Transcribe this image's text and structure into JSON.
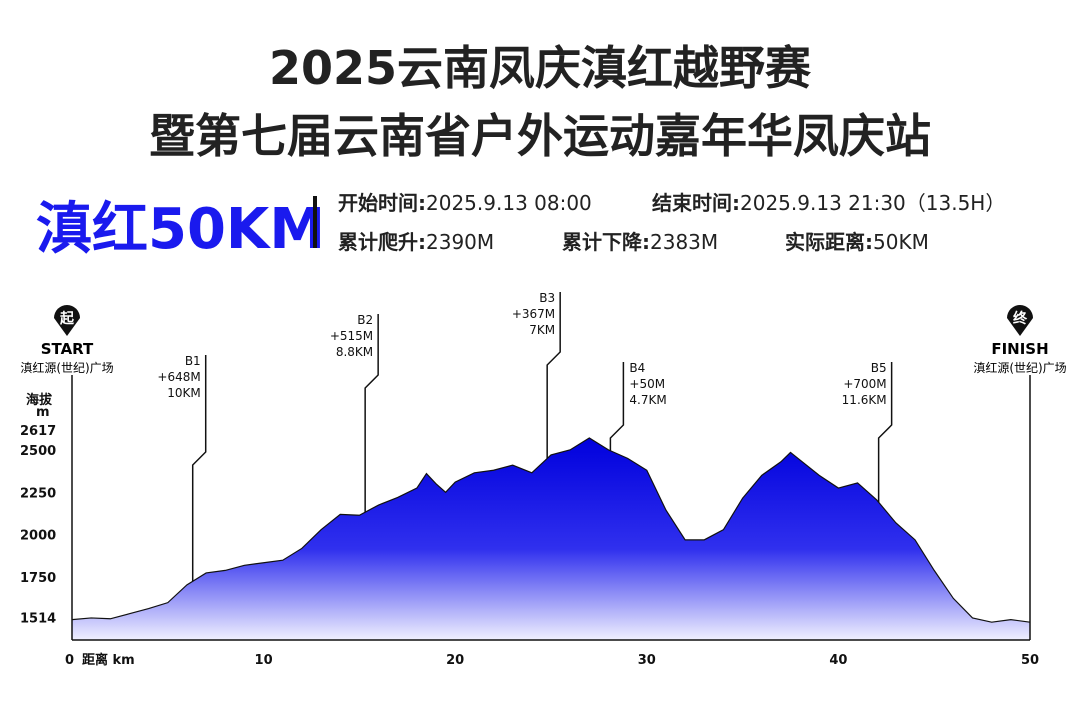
{
  "header": {
    "title_lines": [
      "2025云南凤庆滇红越野赛",
      "暨第七届云南省户外运动嘉年华凤庆站"
    ],
    "race": "滇红50KM",
    "info": [
      [
        {
          "label": "开始时间:",
          "value": "2025.9.13 08:00"
        },
        {
          "label": "结束时间:",
          "value": "2025.9.13  21:30（13.5H）"
        }
      ],
      [
        {
          "label": "累计爬升:",
          "value": "2390M"
        },
        {
          "label": "累计下降:",
          "value": "2383M"
        },
        {
          "label": "实际距离:",
          "value": "50KM"
        }
      ]
    ]
  },
  "chart_data": {
    "type": "area",
    "color": "#0000dd",
    "x": [
      0,
      1,
      2,
      3,
      4,
      5,
      6,
      7,
      8,
      9,
      10,
      11,
      12,
      13,
      14,
      15,
      16,
      17,
      18,
      18.5,
      19,
      19.5,
      20,
      21,
      22,
      23,
      24,
      25,
      26,
      27,
      28,
      29,
      30,
      31,
      32,
      33,
      34,
      35,
      36,
      37,
      37.5,
      38,
      39,
      40,
      41,
      42,
      43,
      44,
      45,
      46,
      47,
      48,
      49,
      50
    ],
    "values": [
      1500,
      1510,
      1505,
      1535,
      1565,
      1600,
      1705,
      1775,
      1790,
      1820,
      1835,
      1850,
      1920,
      2030,
      2120,
      2115,
      2175,
      2220,
      2275,
      2360,
      2300,
      2250,
      2310,
      2365,
      2380,
      2410,
      2365,
      2470,
      2500,
      2570,
      2500,
      2450,
      2380,
      2145,
      1970,
      1970,
      2030,
      2215,
      2350,
      2430,
      2485,
      2440,
      2350,
      2275,
      2305,
      2205,
      2070,
      1970,
      1790,
      1625,
      1510,
      1485,
      1500,
      1485
    ],
    "xlim": [
      0,
      50
    ],
    "ylim": [
      1380,
      2617
    ],
    "xticks": [
      0,
      10,
      20,
      30,
      40,
      50
    ],
    "yticks": [
      1514,
      1750,
      2000,
      2250,
      2500,
      2617
    ],
    "x_label": "距离 km",
    "y_label": [
      "海拔",
      "m"
    ],
    "start": {
      "icon": "起",
      "label": "START",
      "place": "滇红源(世纪)广场"
    },
    "finish": {
      "icon": "终",
      "label": "FINISH",
      "place": "滇红源(世纪)广场"
    },
    "annotations": [
      {
        "x": 6.3,
        "lines": [
          "B1",
          "+648M",
          "10KM"
        ]
      },
      {
        "x": 15.3,
        "lines": [
          "B2",
          "+515M",
          "8.8KM"
        ]
      },
      {
        "x": 24.8,
        "lines": [
          "B3",
          "+367M",
          "7KM"
        ]
      },
      {
        "x": 28.1,
        "lines": [
          "B4",
          "+50M",
          "4.7KM"
        ]
      },
      {
        "x": 42.1,
        "lines": [
          "B5",
          "+700M",
          "11.6KM"
        ]
      }
    ]
  }
}
